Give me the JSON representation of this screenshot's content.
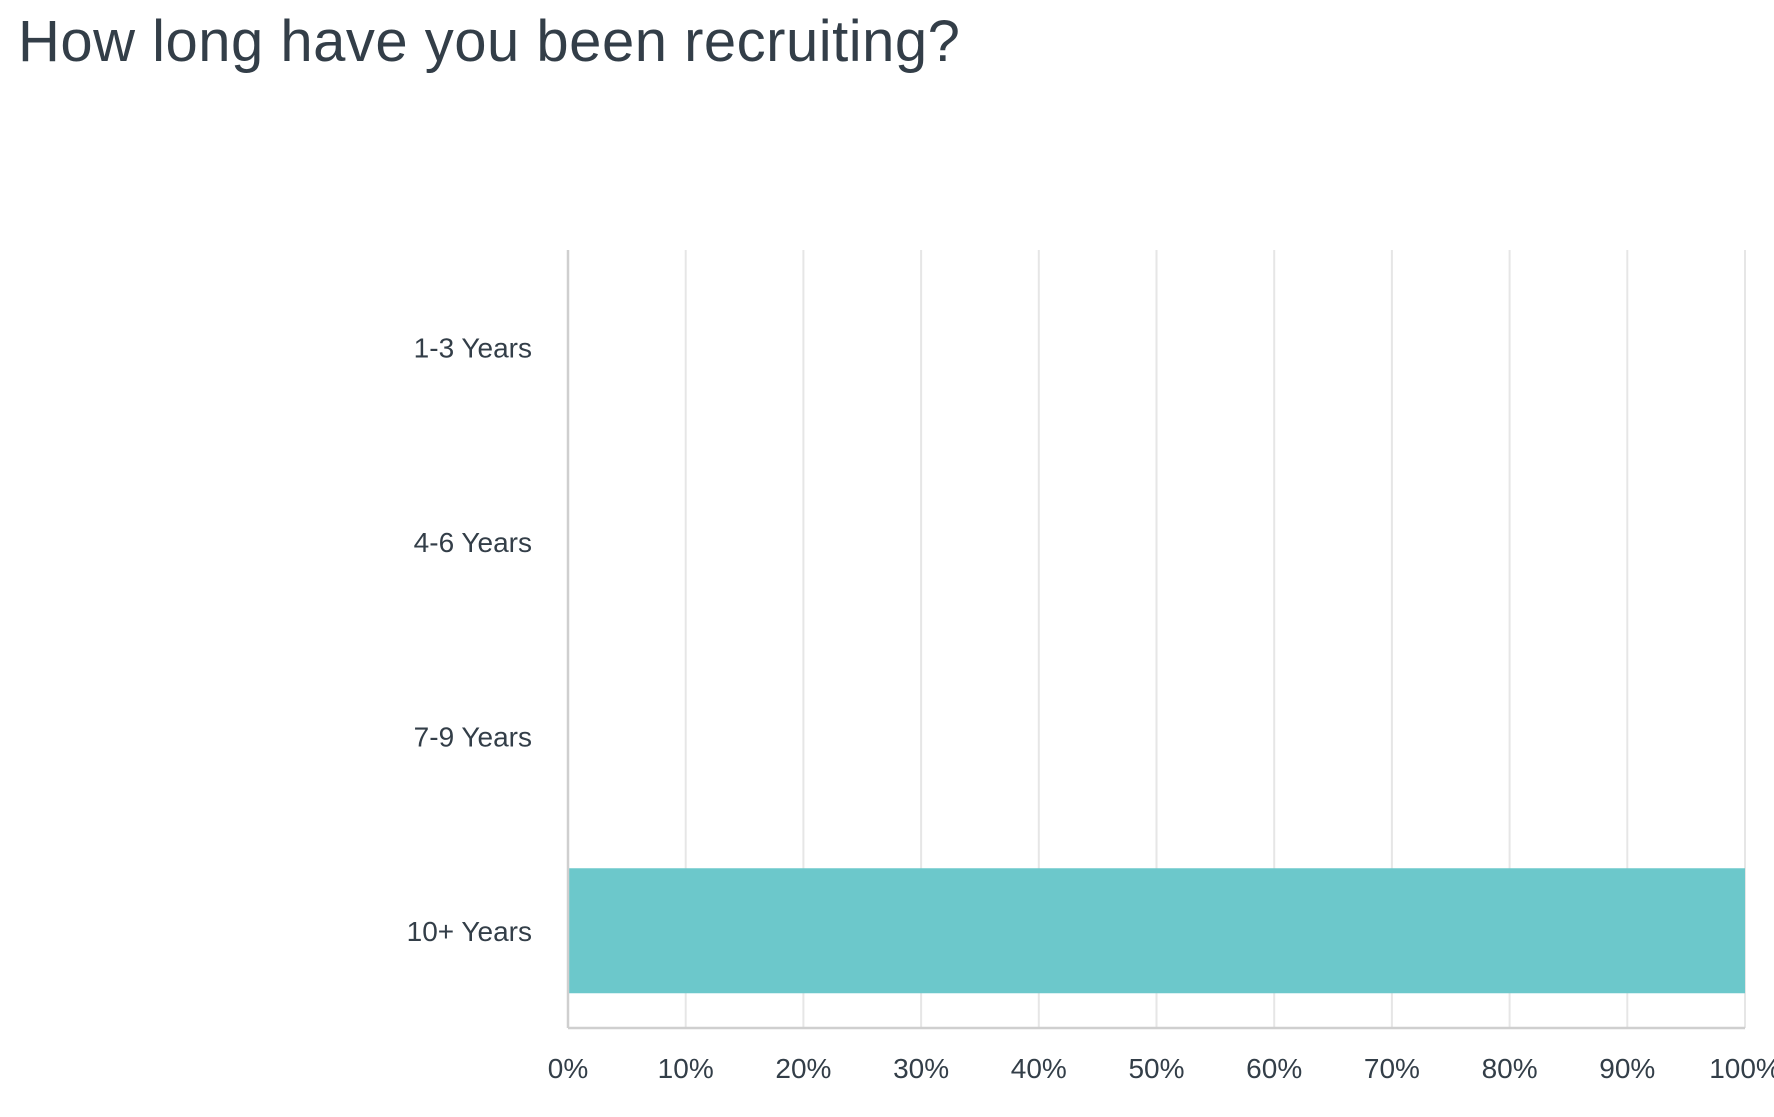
{
  "chart_data": {
    "type": "bar",
    "orientation": "horizontal",
    "title": "How long have you been recruiting?",
    "categories": [
      "1-3 Years",
      "4-6 Years",
      "7-9 Years",
      "10+ Years"
    ],
    "values": [
      0,
      0,
      0,
      100
    ],
    "unit": "%",
    "xlim": [
      0,
      100
    ],
    "xticks": [
      "0%",
      "10%",
      "20%",
      "30%",
      "40%",
      "50%",
      "60%",
      "70%",
      "80%",
      "90%",
      "100%"
    ],
    "xlabel": "",
    "ylabel": "",
    "grid": true,
    "legend": "none",
    "colors": {
      "bar": "#6cc8cb",
      "grid": "#e6e6e6",
      "axis": "#cfcfcf",
      "text": "#333e48"
    }
  }
}
